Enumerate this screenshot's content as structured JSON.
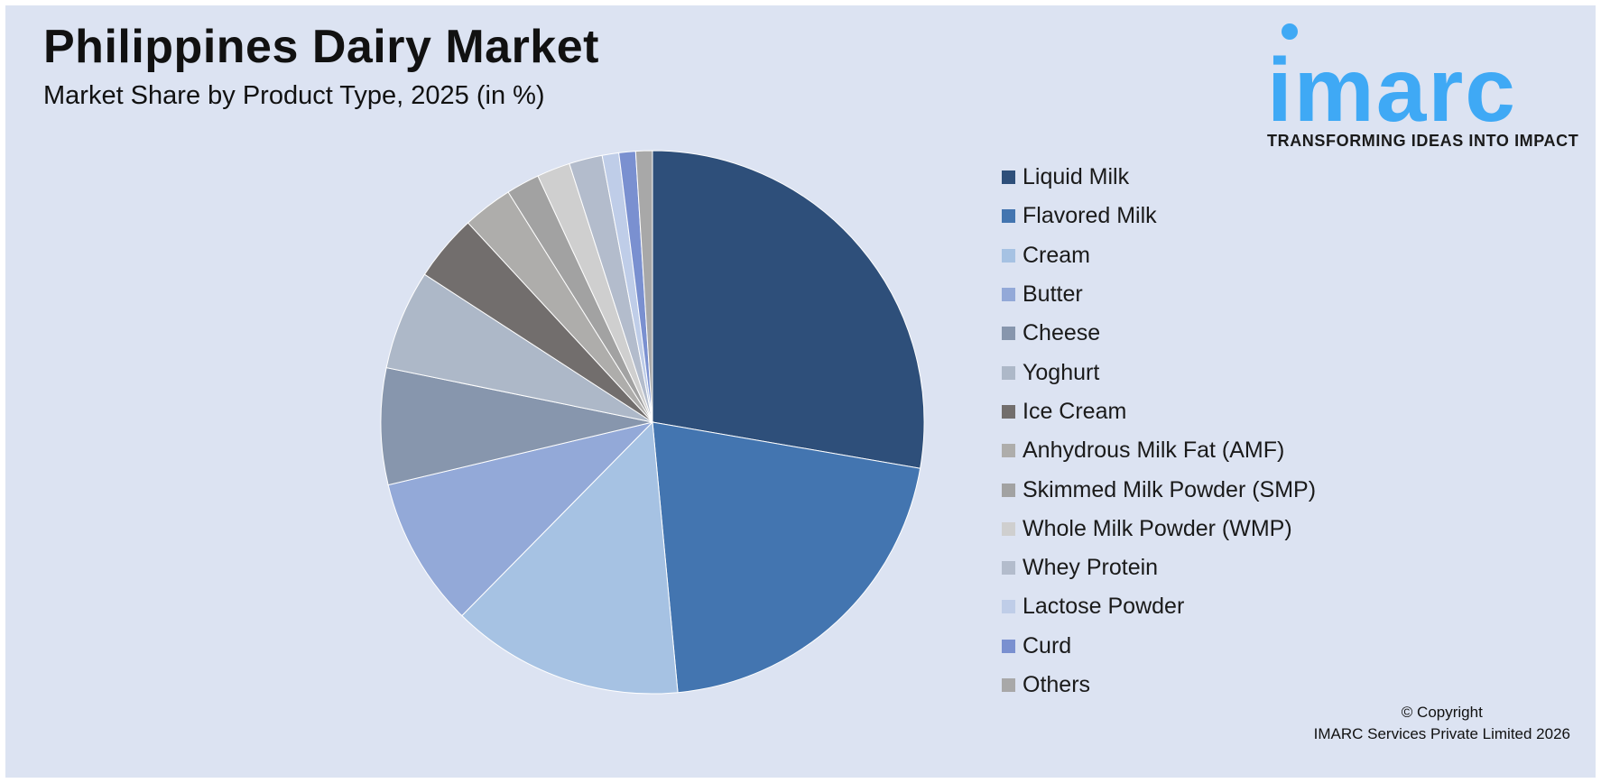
{
  "header": {
    "title": "Philippines Dairy Market",
    "subtitle": "Market Share by Product Type, 2025 (in %)"
  },
  "logo": {
    "text": "imarc",
    "tagline": "TRANSFORMING IDEAS INTO IMPACT",
    "color": "#3fa9f5"
  },
  "copyright": {
    "line1": "© Copyright",
    "line2": "IMARC Services Private Limited 2026"
  },
  "chart_data": {
    "type": "pie",
    "start_angle_deg": 0,
    "direction": "clockwise",
    "legend_position": "right",
    "slices": [
      {
        "label": "Liquid Milk",
        "value": 28.0,
        "color": "#2e4f7a"
      },
      {
        "label": "Flavored Milk",
        "value": 21.0,
        "color": "#4375b0"
      },
      {
        "label": "Cream",
        "value": 14.0,
        "color": "#a6c2e3"
      },
      {
        "label": "Butter",
        "value": 9.0,
        "color": "#93a9d8"
      },
      {
        "label": "Cheese",
        "value": 7.0,
        "color": "#8796ad"
      },
      {
        "label": "Yoghurt",
        "value": 6.0,
        "color": "#adb8c8"
      },
      {
        "label": "Ice Cream",
        "value": 4.0,
        "color": "#726e6d"
      },
      {
        "label": "Anhydrous Milk Fat (AMF)",
        "value": 3.0,
        "color": "#aeadab"
      },
      {
        "label": "Skimmed Milk Powder (SMP)",
        "value": 2.0,
        "color": "#a2a2a2"
      },
      {
        "label": "Whole Milk Powder (WMP)",
        "value": 2.0,
        "color": "#cfcfcf"
      },
      {
        "label": "Whey Protein",
        "value": 2.0,
        "color": "#b3bccc"
      },
      {
        "label": "Lactose Powder",
        "value": 1.0,
        "color": "#bfcde8"
      },
      {
        "label": "Curd",
        "value": 1.0,
        "color": "#7a90d0"
      },
      {
        "label": "Others",
        "value": 1.0,
        "color": "#a8a8a8"
      }
    ]
  }
}
